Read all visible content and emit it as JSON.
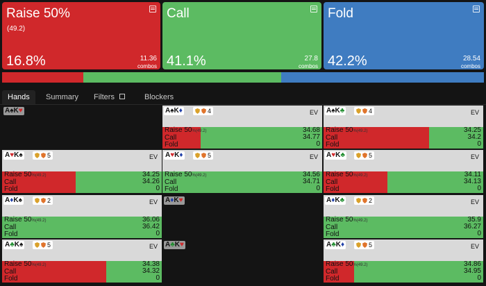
{
  "colors": {
    "raise": "#d0282b",
    "call": "#5cbb62",
    "fold": "#3f7cc1"
  },
  "summary": {
    "raise": {
      "title": "Raise 50%",
      "sub": "(49.2)",
      "pct": "16.8%",
      "combos": "11.36",
      "combos_label": "combos",
      "icon": "copy-icon"
    },
    "call": {
      "title": "Call",
      "pct": "41.1%",
      "combos": "27.8",
      "combos_label": "combos",
      "icon": "copy-icon"
    },
    "fold": {
      "title": "Fold",
      "pct": "42.2%",
      "combos": "28.54",
      "combos_label": "combos",
      "icon": "copy-icon"
    }
  },
  "frequency_bar": {
    "raise": 0.168,
    "call": 0.411,
    "fold": 0.422
  },
  "tabs": {
    "hands": "Hands",
    "summary": "Summary",
    "filters": "Filters",
    "blockers": "Blockers"
  },
  "labels": {
    "ev": "EV",
    "raise": "Raise 50",
    "raise_pct": "%",
    "raise_size": "(49.2)",
    "call": "Call",
    "fold": "Fold"
  },
  "hands": [
    {
      "rank1": "A",
      "suit1": "♠",
      "rank2": "K",
      "suit2": "♥",
      "empty": true
    },
    {
      "rank1": "A",
      "suit1": "♠",
      "rank2": "K",
      "suit2": "♦",
      "b1": "8",
      "b2": "4",
      "raise_freq": 0.24,
      "ev_raise": "34.68",
      "ev_call": "34.77",
      "ev_fold": "0"
    },
    {
      "rank1": "A",
      "suit1": "♠",
      "rank2": "K",
      "suit2": "♣",
      "b1": "8",
      "b2": "4",
      "raise_freq": 0.66,
      "ev_raise": "34.25",
      "ev_call": "34.2",
      "ev_fold": "0"
    },
    {
      "rank1": "A",
      "suit1": "♥",
      "rank2": "K",
      "suit2": "♠",
      "b1": "8",
      "b2": "5",
      "raise_freq": 0.46,
      "ev_raise": "34.25",
      "ev_call": "34.26",
      "ev_fold": "0"
    },
    {
      "rank1": "A",
      "suit1": "♥",
      "rank2": "K",
      "suit2": "♦",
      "b1": "8",
      "b2": "5",
      "raise_freq": 0,
      "ev_raise": "34.56",
      "ev_call": "34.71",
      "ev_fold": "0"
    },
    {
      "rank1": "A",
      "suit1": "♥",
      "rank2": "K",
      "suit2": "♣",
      "b1": "8",
      "b2": "5",
      "raise_freq": 0.4,
      "ev_raise": "34.11",
      "ev_call": "34.13",
      "ev_fold": "0"
    },
    {
      "rank1": "A",
      "suit1": "♦",
      "rank2": "K",
      "suit2": "♠",
      "b1": "9",
      "b2": "2",
      "raise_freq": 0,
      "ev_raise": "36.06",
      "ev_call": "36.42",
      "ev_fold": "0"
    },
    {
      "rank1": "A",
      "suit1": "♦",
      "rank2": "K",
      "suit2": "♥",
      "empty": true
    },
    {
      "rank1": "A",
      "suit1": "♦",
      "rank2": "K",
      "suit2": "♣",
      "b1": "9",
      "b2": "2",
      "raise_freq": 0,
      "ev_raise": "35.9",
      "ev_call": "36.27",
      "ev_fold": "0"
    },
    {
      "rank1": "A",
      "suit1": "♣",
      "rank2": "K",
      "suit2": "♠",
      "b1": "8",
      "b2": "5",
      "raise_freq": 0.65,
      "ev_raise": "34.38",
      "ev_call": "34.32",
      "ev_fold": "0"
    },
    {
      "rank1": "A",
      "suit1": "♣",
      "rank2": "K",
      "suit2": "♥",
      "empty": true
    },
    {
      "rank1": "A",
      "suit1": "♣",
      "rank2": "K",
      "suit2": "♦",
      "b1": "8",
      "b2": "5",
      "raise_freq": 0.19,
      "ev_raise": "34.86",
      "ev_call": "34.95",
      "ev_fold": "0"
    }
  ]
}
